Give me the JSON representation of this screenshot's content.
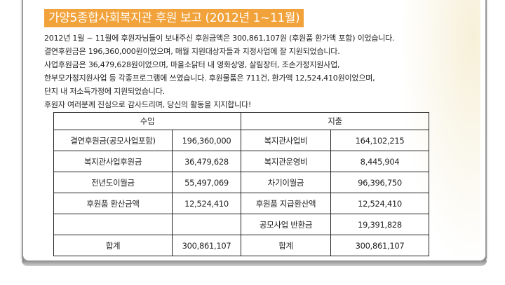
{
  "title": "가양5종합사회복지관 후원 보고 (2012년 1~11월)",
  "paragraph": [
    "2012년 1월 ~ 11월에 후원자님들이 보내주신 후원금액은 300,861,107원 (후원품 환가액 포함) 이었습니다.",
    "결연후원금은 196,360,000원이었으며, 매월 지원대상자들과 지정사업에 잘 지원되었습니다.",
    "사업후원금은 36,479,628원이었으며, 마을소닭터 내 영화상영, 살림장터, 조손가정지원사업,",
    "한부모가정지원사업 등 각종프로그램에 쓰였습니다. 후원물품은 711건, 환가액 12,524,410원이었으며,",
    "단지 내 저소득가정에 지원되었습니다.",
    "후원자 여러분께 진심으로 감사드리며, 당신의 활동을 지지합니다!"
  ],
  "table": {
    "income_header": "수입",
    "expense_header": "지출",
    "rows": [
      {
        "income_label": "결연후원금(공모사업포함)",
        "income_amount": "196,360,000",
        "expense_label": "복지관사업비",
        "expense_amount": "164,102,215"
      },
      {
        "income_label": "복지관사업후원금",
        "income_amount": "36,479,628",
        "expense_label": "복지관운영비",
        "expense_amount": "8,445,904"
      },
      {
        "income_label": "전년도이월금",
        "income_amount": "55,497,069",
        "expense_label": "차기이월금",
        "expense_amount": "96,396,750"
      },
      {
        "income_label": "후원품 환산금액",
        "income_amount": "12,524,410",
        "expense_label": "후원품 지급환산액",
        "expense_amount": "12,524,410"
      },
      {
        "income_label": "",
        "income_amount": "",
        "expense_label": "공모사업 반환금",
        "expense_amount": "19,391,828"
      },
      {
        "income_label": "합계",
        "income_amount": "300,861,107",
        "expense_label": "합계",
        "expense_amount": "300,861,107"
      }
    ]
  },
  "colors": {
    "title_bg": "#f2a23a",
    "title_text": "#ffffff",
    "frame_border": "#9a9a9a"
  }
}
